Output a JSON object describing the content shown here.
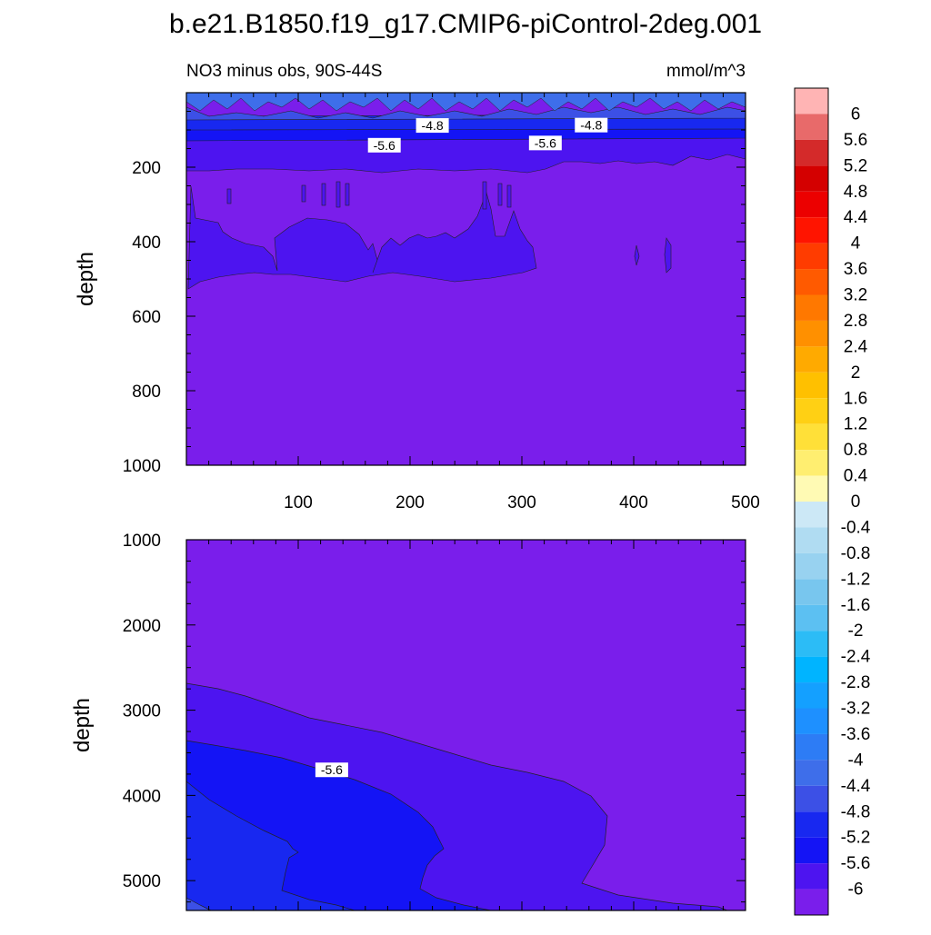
{
  "title": "b.e21.B1850.f19_g17.CMIP6-piControl-2deg.001",
  "chart_data": [
    {
      "type": "contour",
      "panel": "upper",
      "left_label": "NO3 minus obs, 90S-44S",
      "right_label": "mmol/m^3",
      "ylabel": "depth",
      "xlabel": "",
      "xlim": [
        0,
        500
      ],
      "ylim": [
        1000,
        0
      ],
      "x_ticks": [
        "100",
        "200",
        "300",
        "400",
        "500"
      ],
      "y_ticks": [
        "200",
        "400",
        "600",
        "800",
        "1000"
      ],
      "contour_labels": [
        {
          "text": "-4.8",
          "x": 220,
          "y": 88
        },
        {
          "text": "-4.8",
          "x": 362,
          "y": 87
        },
        {
          "text": "-5.6",
          "x": 177,
          "y": 141
        },
        {
          "text": "-5.6",
          "x": 321,
          "y": 135
        }
      ]
    },
    {
      "type": "contour",
      "panel": "lower",
      "ylabel": "depth",
      "xlabel": "",
      "xlim": [
        0,
        500
      ],
      "ylim": [
        5350,
        1000
      ],
      "x_ticks": [],
      "y_ticks": [
        "1000",
        "2000",
        "3000",
        "4000",
        "5000"
      ],
      "contour_labels": [
        {
          "text": "-5.6",
          "x": 130,
          "y": 3700
        }
      ]
    }
  ],
  "colorbar": {
    "labels": [
      "6",
      "5.6",
      "5.2",
      "4.8",
      "4.4",
      "4",
      "3.6",
      "3.2",
      "2.8",
      "2.4",
      "2",
      "1.6",
      "1.2",
      "0.8",
      "0.4",
      "0",
      "-0.4",
      "-0.8",
      "-1.2",
      "-1.6",
      "-2",
      "-2.4",
      "-2.8",
      "-3.2",
      "-3.6",
      "-4",
      "-4.4",
      "-4.8",
      "-5.2",
      "-5.6",
      "-6"
    ],
    "colors": [
      "#ffb4b4",
      "#e86a6a",
      "#d42a2a",
      "#d40000",
      "#ec0000",
      "#ff1400",
      "#ff3c00",
      "#ff5a00",
      "#ff7800",
      "#ff9000",
      "#ffaa00",
      "#ffc000",
      "#ffd014",
      "#ffe038",
      "#ffee70",
      "#fffab4",
      "#cce8f6",
      "#b0dcf2",
      "#98d2f0",
      "#78c6ee",
      "#5cc0f2",
      "#2cbcf6",
      "#00b4ff",
      "#14a0ff",
      "#1e90ff",
      "#2d7cf5",
      "#3e6eea",
      "#3c50e6",
      "#1828f0",
      "#1414f5",
      "#4d14f0",
      "#7a1eeb"
    ]
  },
  "colors": {
    "c_m44": "#3e6eea",
    "c_m48": "#3c50e6",
    "c_m52": "#1828f0",
    "c_m56": "#1414f5",
    "c_m60": "#4d14f0",
    "c_lt60": "#7a1eeb"
  }
}
